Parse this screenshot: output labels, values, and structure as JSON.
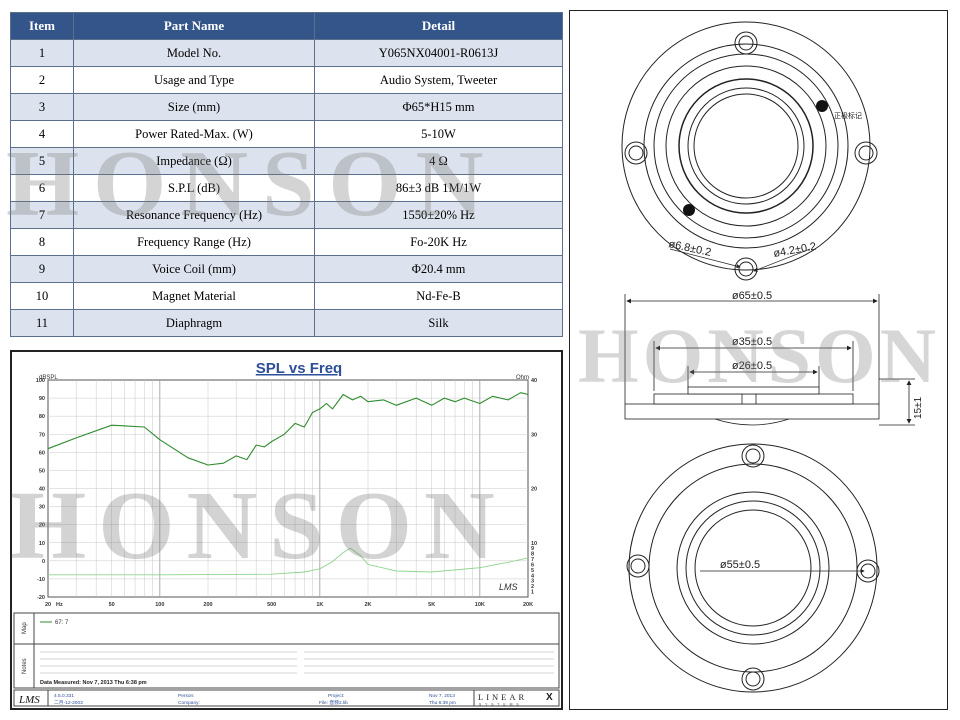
{
  "spec_table": {
    "headers": [
      "Item",
      "Part Name",
      "Detail"
    ],
    "rows": [
      {
        "item": "1",
        "name": "Model No.",
        "detail": "Y065NX04001-R0613J"
      },
      {
        "item": "2",
        "name": "Usage and Type",
        "detail": "Audio System, Tweeter"
      },
      {
        "item": "3",
        "name": "Size (mm)",
        "detail": "Φ65*H15 mm"
      },
      {
        "item": "4",
        "name": "Power Rated-Max. (W)",
        "detail": "5-10W"
      },
      {
        "item": "5",
        "name": "Impedance (Ω)",
        "detail": "4 Ω"
      },
      {
        "item": "6",
        "name": "S.P.L (dB)",
        "detail": "86±3 dB   1M/1W"
      },
      {
        "item": "7",
        "name": "Resonance Frequency (Hz)",
        "detail": "1550±20% Hz"
      },
      {
        "item": "8",
        "name": "Frequency Range (Hz)",
        "detail": "Fo-20K Hz"
      },
      {
        "item": "9",
        "name": "Voice Coil (mm)",
        "detail": "Φ20.4 mm"
      },
      {
        "item": "10",
        "name": "Magnet Material",
        "detail": "Nd-Fe-B"
      },
      {
        "item": "11",
        "name": "Diaphragm",
        "detail": "Silk"
      }
    ]
  },
  "watermark": "HONSON",
  "chart_data": {
    "type": "line",
    "title": "SPL vs Freq",
    "ylabel": "dBSPL",
    "y2label": "Ohm",
    "xscale": "log",
    "xlim": [
      20,
      20000
    ],
    "ylim": [
      -20,
      100
    ],
    "y2lim": [
      0,
      40
    ],
    "x_ticks": [
      {
        "v": 20,
        "label": "20"
      },
      {
        "v": 50,
        "label": "50"
      },
      {
        "v": 100,
        "label": "100"
      },
      {
        "v": 200,
        "label": "200"
      },
      {
        "v": 500,
        "label": "500"
      },
      {
        "v": 1000,
        "label": "1K"
      },
      {
        "v": 2000,
        "label": "2K"
      },
      {
        "v": 5000,
        "label": "5K"
      },
      {
        "v": 10000,
        "label": "10K"
      },
      {
        "v": 20000,
        "label": "20K"
      }
    ],
    "x_unit": "Hz",
    "y_ticks": [
      "100",
      "90",
      "80",
      "70",
      "60",
      "50",
      "40",
      "30",
      "20",
      "10",
      "0",
      "-10",
      "-20"
    ],
    "y2_ticks": [
      {
        "v": 40,
        "label": "40"
      },
      {
        "v": 30,
        "label": "30"
      },
      {
        "v": 20,
        "label": "20"
      },
      {
        "v": 10,
        "label": "10"
      },
      {
        "v": 9,
        "label": "9"
      },
      {
        "v": 8,
        "label": "8"
      },
      {
        "v": 7,
        "label": "7"
      },
      {
        "v": 6,
        "label": "6"
      },
      {
        "v": 5,
        "label": "5"
      },
      {
        "v": 4,
        "label": "4"
      },
      {
        "v": 3,
        "label": "3"
      },
      {
        "v": 2,
        "label": "2"
      },
      {
        "v": 1,
        "label": "1"
      }
    ],
    "series": [
      {
        "name": "SPL",
        "axis": "left",
        "color": "#2e8b2e",
        "x": [
          20,
          30,
          50,
          80,
          100,
          150,
          200,
          250,
          300,
          350,
          400,
          450,
          500,
          600,
          700,
          800,
          900,
          1000,
          1100,
          1200,
          1400,
          1600,
          1800,
          2000,
          2500,
          3000,
          4000,
          5000,
          6000,
          7000,
          8000,
          10000,
          12000,
          15000,
          18000,
          20000
        ],
        "y": [
          62,
          68,
          75,
          74,
          67,
          57,
          53,
          54,
          58,
          56,
          64,
          63,
          66,
          70,
          76,
          74,
          82,
          84,
          87,
          84,
          92,
          89,
          91,
          88,
          89,
          86,
          90,
          86,
          90,
          88,
          90,
          87,
          91,
          89,
          93,
          92
        ]
      },
      {
        "name": "Impedance",
        "axis": "right",
        "color": "#8fd48f",
        "x": [
          20,
          100,
          500,
          800,
          1000,
          1200,
          1400,
          1550,
          1800,
          2000,
          3000,
          5000,
          10000,
          15000,
          20000
        ],
        "y": [
          4.1,
          4.1,
          4.2,
          4.6,
          5.2,
          6.5,
          8.2,
          9.0,
          7.6,
          6.0,
          4.8,
          4.6,
          5.4,
          6.4,
          7.2
        ]
      }
    ]
  },
  "legend_entry": "67: 7",
  "side_labels": {
    "map": "Map",
    "notes": "Notes"
  },
  "data_measured": "Data Measured: Nov 7, 2013  Thu 6:38 pm",
  "lms_logo": "LMS",
  "footer": {
    "version": "4.5.0.331",
    "date_code": "二月-12-2003",
    "person_label": "Person:",
    "company_label": "Company:",
    "project_label": "Project:",
    "file_label": "File: 音频2.lib",
    "date": "Nov 7, 2013",
    "time": "Thu 6:39 pm",
    "brand": "LINEAR",
    "brand_mark": "X",
    "brand_sub": "S Y S T E M S"
  },
  "drawing": {
    "label_terminal": "正极标记",
    "dim_hole": "ø6.8±0.2",
    "dim_pin": "ø4.2±0.2",
    "dim_outer": "ø65±0.5",
    "dim_35": "ø35±0.5",
    "dim_26": "ø26±0.5",
    "dim_height": "15±1",
    "dim_55": "ø55±0.5"
  }
}
